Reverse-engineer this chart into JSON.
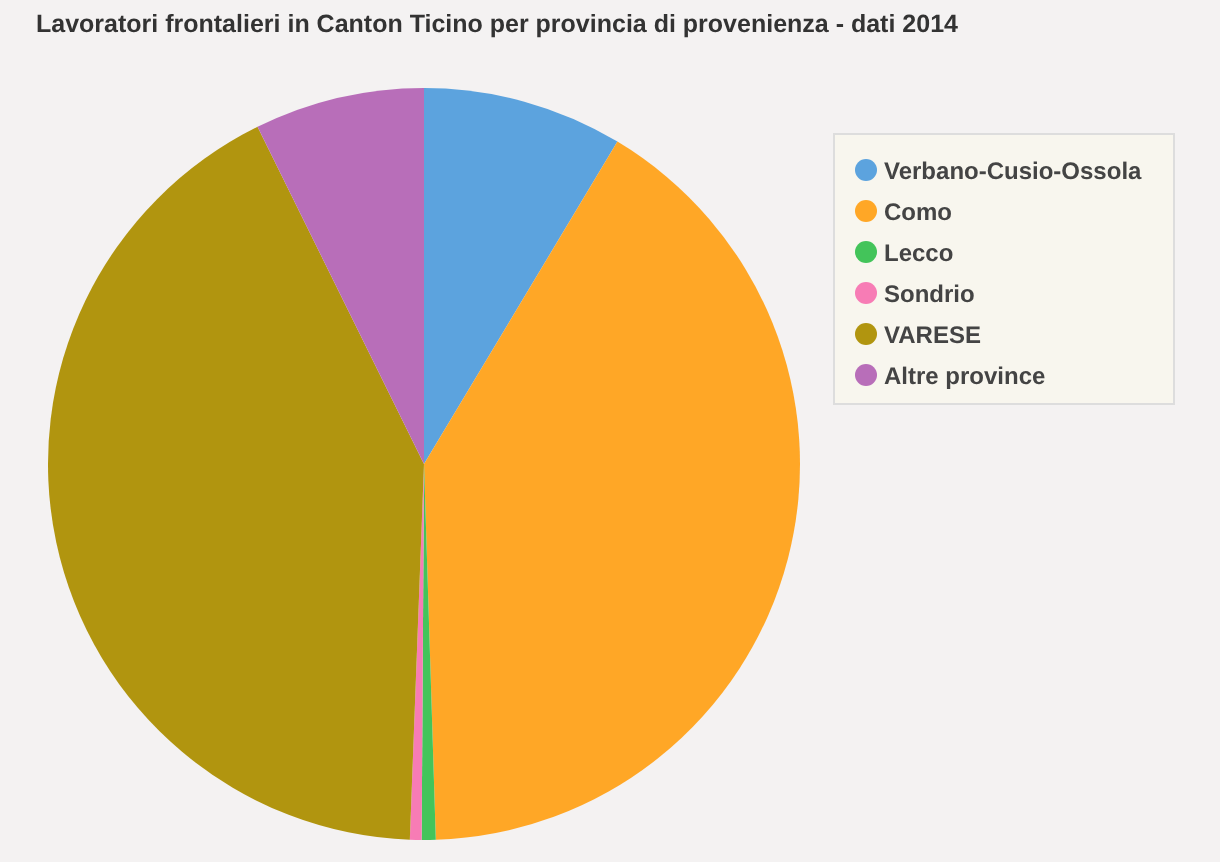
{
  "chart_data": {
    "type": "pie",
    "title": "Lavoratori frontalieri in Canton Ticino per provincia di provenienza - dati 2014",
    "categories": [
      "Verbano-Cusio-Ossola",
      "Como",
      "Lecco",
      "Sondrio",
      "VARESE",
      "Altre province"
    ],
    "values": [
      8.6,
      40.9,
      0.6,
      0.5,
      42.1,
      7.3
    ],
    "colors": [
      "#5ca3de",
      "#ffa726",
      "#43c45a",
      "#f77cb5",
      "#b1950f",
      "#b86eb9"
    ],
    "legend": "top right"
  }
}
